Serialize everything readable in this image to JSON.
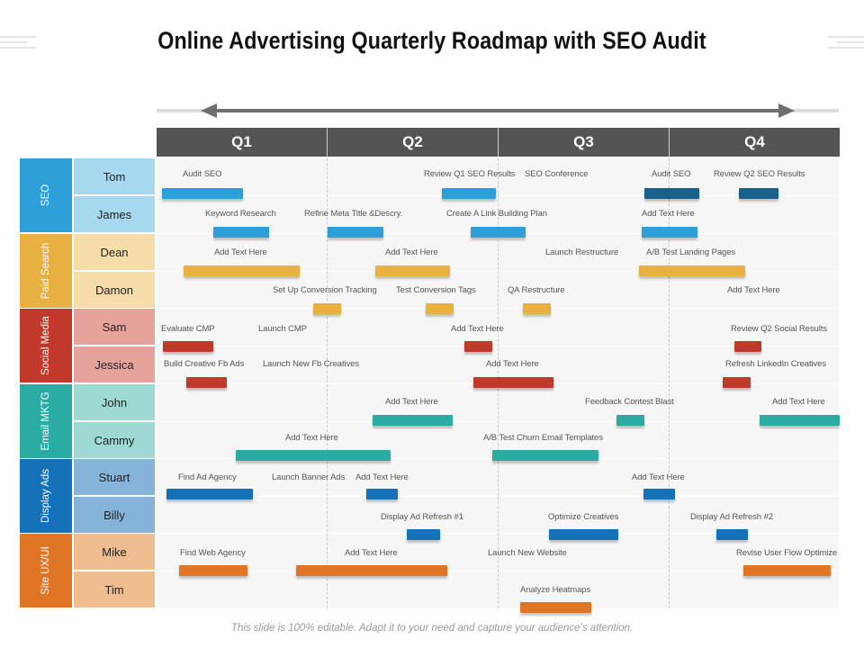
{
  "title": "Online Advertising Quarterly Roadmap with SEO Audit",
  "quarters": [
    "Q1",
    "Q2",
    "Q3",
    "Q4"
  ],
  "categories": [
    {
      "label": "SEO",
      "color": "#2e9fd9"
    },
    {
      "label": "Paid Search",
      "color": "#e8b040"
    },
    {
      "label": "Social Media",
      "color": "#c0392b"
    },
    {
      "label": "Email MKTG",
      "color": "#2aaba3"
    },
    {
      "label": "Display Ads",
      "color": "#1571b8"
    },
    {
      "label": "Site UX/UI",
      "color": "#e07625"
    }
  ],
  "people": [
    {
      "name": "Tom",
      "bg": "#a6d8f0"
    },
    {
      "name": "James",
      "bg": "#a6d8f0"
    },
    {
      "name": "Dean",
      "bg": "#f5dca8"
    },
    {
      "name": "Damon",
      "bg": "#f5dca8"
    },
    {
      "name": "Sam",
      "bg": "#e6a39b"
    },
    {
      "name": "Jessica",
      "bg": "#e6a39b"
    },
    {
      "name": "John",
      "bg": "#9ed9d4"
    },
    {
      "name": "Cammy",
      "bg": "#9ed9d4"
    },
    {
      "name": "Stuart",
      "bg": "#86b3d9"
    },
    {
      "name": "Billy",
      "bg": "#86b3d9"
    },
    {
      "name": "Mike",
      "bg": "#efbd8e"
    },
    {
      "name": "Tim",
      "bg": "#efbd8e"
    }
  ],
  "tasks": [
    {
      "label": "Audit SEO",
      "color": "#2e9fd9"
    },
    {
      "label": "Review Q1 SEO Results",
      "color": "#2e9fd9"
    },
    {
      "label": "SEO Conference",
      "color": ""
    },
    {
      "label": "Audit SEO",
      "color": "#1a5f8a"
    },
    {
      "label": "Review Q2 SEO Results",
      "color": "#1a5f8a"
    },
    {
      "label": "Keyword Research",
      "color": "#2e9fd9"
    },
    {
      "label": "Refine Meta Title &Descry.",
      "color": "#2e9fd9"
    },
    {
      "label": "Create A Link Building Plan",
      "color": "#2e9fd9"
    },
    {
      "label": "Add Text Here",
      "color": "#2e9fd9"
    },
    {
      "label": "Add Text Here",
      "color": "#e8b040"
    },
    {
      "label": "Add Text Here",
      "color": "#e8b040"
    },
    {
      "label": "Launch Restructure",
      "color": ""
    },
    {
      "label": "A/B Test Landing Pages",
      "color": "#e8b040"
    },
    {
      "label": "Set Up Conversion Tracking",
      "color": "#e8b040"
    },
    {
      "label": "Test Conversion Tags",
      "color": "#e8b040"
    },
    {
      "label": "QA Restructure",
      "color": "#e8b040"
    },
    {
      "label": "Add Text Here",
      "color": ""
    },
    {
      "label": "Evaluate CMP",
      "color": "#c0392b"
    },
    {
      "label": "Launch CMP",
      "color": ""
    },
    {
      "label": "Add Text Here",
      "color": "#c0392b"
    },
    {
      "label": "Review Q2 Social Results",
      "color": "#c0392b"
    },
    {
      "label": "Build Creative Fb Ads",
      "color": "#c0392b"
    },
    {
      "label": "Launch New Fb Creatives",
      "color": ""
    },
    {
      "label": "Add Text Here",
      "color": "#c0392b"
    },
    {
      "label": "Refresh LinkedIn Creatives",
      "color": "#c0392b"
    },
    {
      "label": "Add Text Here",
      "color": "#2aaba3"
    },
    {
      "label": "Feedback Contest Blast",
      "color": "#2aaba3"
    },
    {
      "label": "Add Text Here",
      "color": "#2aaba3"
    },
    {
      "label": "Add Text Here",
      "color": "#2aaba3"
    },
    {
      "label": "A/B Test Churn Email Templates",
      "color": "#2aaba3"
    },
    {
      "label": "Find Ad Agency",
      "color": "#1571b8"
    },
    {
      "label": "Launch Banner Ads",
      "color": ""
    },
    {
      "label": "Add Text Here",
      "color": "#1571b8"
    },
    {
      "label": "Add Text Here",
      "color": "#1571b8"
    },
    {
      "label": "Display Ad Refresh #1",
      "color": "#1571b8"
    },
    {
      "label": "Optimize Creatives",
      "color": "#1571b8"
    },
    {
      "label": "Display Ad Refresh #2",
      "color": "#1571b8"
    },
    {
      "label": "Find Web Agency",
      "color": "#e07625"
    },
    {
      "label": "Add Text Here",
      "color": "#e07625"
    },
    {
      "label": "Launch New Website",
      "color": ""
    },
    {
      "label": "Revise User Flow Optimize",
      "color": "#e07625"
    },
    {
      "label": "Analyze Heatmaps",
      "color": "#e07625"
    }
  ],
  "footer": "This slide is 100% editable. Adapt it to your need and capture your audience’s attention."
}
